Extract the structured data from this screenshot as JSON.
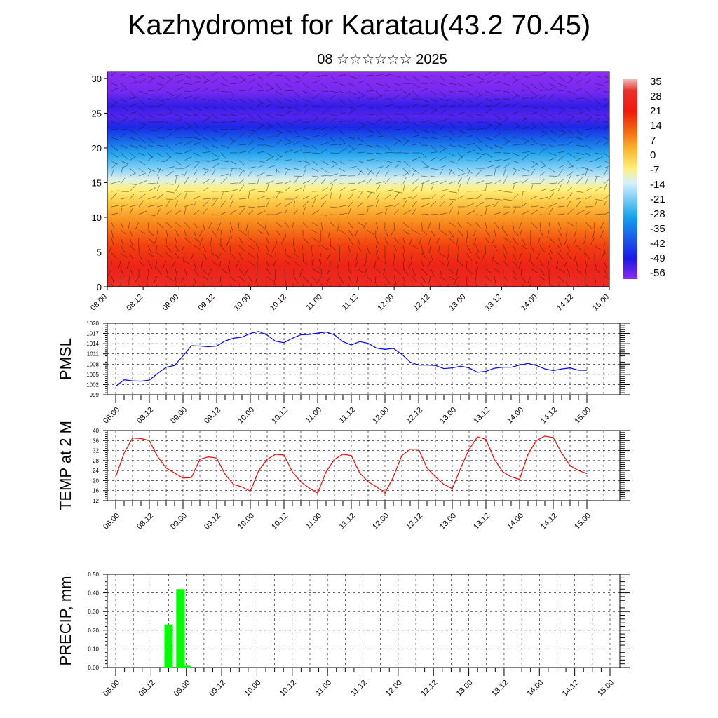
{
  "title": "Kazhydromet for Karatau(43.2 70.45)",
  "subtitle": "08 ☆☆☆☆☆☆ 2025",
  "chart_data": [
    {
      "type": "heatmap",
      "name": "temperature-wind-cross-section",
      "x_ticks": [
        "08.00",
        "08.12",
        "09.00",
        "09.12",
        "10.00",
        "10.12",
        "11.00",
        "11.12",
        "12.00",
        "12.12",
        "13.00",
        "13.12",
        "14.00",
        "14.12",
        "15.00"
      ],
      "y_ticks": [
        0,
        5,
        10,
        15,
        20,
        25,
        30
      ],
      "ylim": [
        0,
        31
      ],
      "colorbar_ticks": [
        "35",
        "28",
        "21",
        "14",
        "7",
        "0",
        "-7",
        "-14",
        "-21",
        "-28",
        "-35",
        "-42",
        "-49",
        "-56"
      ],
      "colorbar_range": [
        -60,
        38
      ],
      "color_stops": [
        {
          "value": 38,
          "color": "#f2c4c4"
        },
        {
          "value": 32,
          "color": "#e8302b"
        },
        {
          "value": 22,
          "color": "#f01a0a"
        },
        {
          "value": 12,
          "color": "#f56a12"
        },
        {
          "value": 4,
          "color": "#fbb22a"
        },
        {
          "value": -6,
          "color": "#fff07a"
        },
        {
          "value": -13,
          "color": "#d6f0ff"
        },
        {
          "value": -22,
          "color": "#6ec8f5"
        },
        {
          "value": -30,
          "color": "#12a0ec"
        },
        {
          "value": -40,
          "color": "#1a5ce8"
        },
        {
          "value": -50,
          "color": "#1b1be6"
        },
        {
          "value": -60,
          "color": "#8c2cf2"
        }
      ],
      "grid": false
    },
    {
      "type": "line",
      "ylabel": "PMSL",
      "x_ticks": [
        "08.00",
        "08.12",
        "09.00",
        "09.12",
        "10.00",
        "10.12",
        "11.00",
        "11.12",
        "12.00",
        "12.12",
        "13.00",
        "13.12",
        "14.00",
        "14.12",
        "15.00"
      ],
      "y_ticks": [
        999,
        1002,
        1005,
        1008,
        1011,
        1014,
        1017,
        1020
      ],
      "ylim": [
        999,
        1020
      ],
      "color": "#0000ff",
      "grid": true,
      "values": [
        1001.5,
        1003.4,
        1003.1,
        1003.0,
        1003.3,
        1005.3,
        1007.1,
        1007.6,
        1010.4,
        1013.4,
        1013.3,
        1013.1,
        1013.3,
        1014.8,
        1015.6,
        1015.9,
        1017.0,
        1017.6,
        1016.5,
        1014.7,
        1014.3,
        1015.6,
        1016.6,
        1016.7,
        1017.1,
        1017.4,
        1016.6,
        1014.6,
        1013.6,
        1014.6,
        1014.1,
        1012.7,
        1012.3,
        1012.6,
        1010.9,
        1008.6,
        1007.7,
        1007.7,
        1007.6,
        1006.7,
        1006.9,
        1007.4,
        1006.9,
        1005.6,
        1005.9,
        1006.8,
        1007.1,
        1007.1,
        1007.7,
        1008.2,
        1007.6,
        1006.6,
        1006.1,
        1006.6,
        1006.9,
        1006.2,
        1006.2
      ]
    },
    {
      "type": "line",
      "ylabel": "TEMP at 2 M",
      "x_ticks": [
        "08.00",
        "08.12",
        "09.00",
        "09.12",
        "10.00",
        "10.12",
        "11.00",
        "11.12",
        "12.00",
        "12.12",
        "13.00",
        "13.12",
        "14.00",
        "14.12",
        "15.00"
      ],
      "y_ticks": [
        12,
        16,
        20,
        24,
        28,
        32,
        36,
        40
      ],
      "ylim": [
        12,
        40
      ],
      "color": "#ff0000",
      "grid": true,
      "values": [
        21.5,
        31.0,
        37.0,
        36.8,
        36.0,
        29.5,
        25.0,
        23.0,
        21.0,
        21.2,
        28.5,
        29.5,
        29.0,
        22.5,
        18.5,
        17.5,
        15.8,
        24.0,
        28.5,
        30.5,
        30.2,
        23.5,
        19.5,
        17.0,
        15.0,
        23.5,
        28.5,
        30.5,
        30.0,
        23.0,
        19.5,
        17.5,
        15.0,
        21.5,
        30.0,
        32.5,
        32.5,
        25.0,
        21.5,
        18.5,
        16.8,
        25.0,
        32.5,
        37.5,
        36.5,
        28.5,
        23.5,
        21.5,
        20.5,
        30.5,
        36.0,
        37.8,
        37.2,
        31.0,
        26.0,
        24.0,
        22.8
      ]
    },
    {
      "type": "bar",
      "ylabel": "PRECIP, mm",
      "x_ticks": [
        "08.00",
        "08.12",
        "09.00",
        "09.12",
        "10.00",
        "10.12",
        "11.00",
        "11.12",
        "12.00",
        "12.12",
        "13.00",
        "13.12",
        "14.00",
        "14.12",
        "15.00"
      ],
      "y_ticks": [
        "0.00",
        "0.10",
        "0.20",
        "0.30",
        "0.40",
        "0.50"
      ],
      "ylim": [
        0,
        0.5
      ],
      "color": "#00ff00",
      "grid": true,
      "bars": [
        {
          "x_step": 9,
          "value": 0.23
        },
        {
          "x_step": 11,
          "value": 0.42
        },
        {
          "x_step": 12,
          "value": 0.01
        }
      ]
    }
  ]
}
